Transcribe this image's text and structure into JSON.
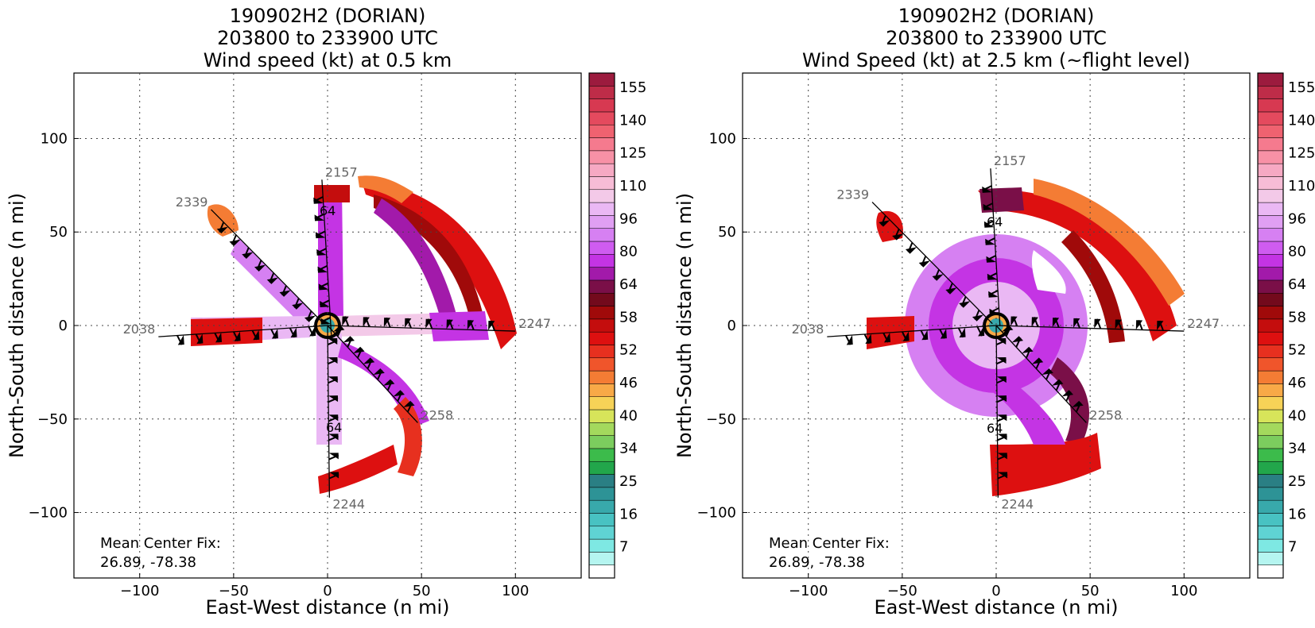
{
  "colorbar": {
    "colors": [
      "#ffffff",
      "#b5f5f0",
      "#7ee8e3",
      "#5fd3d3",
      "#48c2c2",
      "#38a9ab",
      "#2d9396",
      "#2a7f84",
      "#22a64b",
      "#3cbb4b",
      "#7ccd5e",
      "#a4d95d",
      "#d7e45a",
      "#f6d257",
      "#f8a947",
      "#f47c34",
      "#f0552b",
      "#e7301f",
      "#dd1010",
      "#c40d0d",
      "#a00a0a",
      "#730a1c",
      "#7a0f48",
      "#a21aaa",
      "#c434e4",
      "#cf5cf0",
      "#d680f2",
      "#e09ff3",
      "#eab8f4",
      "#f3c9e8",
      "#f7bcd6",
      "#f6a9c3",
      "#f791a6",
      "#f57a8e",
      "#ef6270",
      "#e44a5e",
      "#d73951",
      "#be2c48",
      "#9c1b3e"
    ],
    "tick_labels": [
      "155",
      "140",
      "125",
      "110",
      "96",
      "80",
      "64",
      "58",
      "52",
      "46",
      "40",
      "34",
      "25",
      "16",
      "7"
    ]
  },
  "chart_data": [
    {
      "type": "heatmap",
      "title_lines": [
        "190902H2 (DORIAN)",
        "203800 to 233900 UTC",
        "Wind speed (kt) at 0.5 km"
      ],
      "xlabel": "East-West distance (n mi)",
      "ylabel": "North-South distance (n mi)",
      "xlim": [
        -135,
        135
      ],
      "ylim": [
        -135,
        135
      ],
      "xticks": [
        -100,
        -50,
        0,
        50,
        100
      ],
      "yticks": [
        -100,
        -50,
        0,
        50,
        100
      ],
      "grid": true,
      "annotation_lines": [
        "Mean Center Fix:",
        "26.89, -78.38"
      ],
      "legend_placement": "lower-left",
      "colorbar_label_values": [
        155,
        140,
        125,
        110,
        96,
        80,
        64,
        58,
        52,
        46,
        40,
        34,
        25,
        16,
        7
      ],
      "flight_legs": [
        {
          "label": "2157",
          "from": [
            -3,
            78
          ],
          "to": [
            2,
            -5
          ]
        },
        {
          "label": "2339",
          "from": [
            -62,
            62
          ],
          "to": [
            -2,
            1
          ]
        },
        {
          "label": "2038",
          "from": [
            -90,
            -6
          ],
          "to": [
            0,
            0
          ]
        },
        {
          "label": "2247",
          "from": [
            100,
            -3
          ],
          "to": [
            0,
            0
          ]
        },
        {
          "label": "2258",
          "from": [
            48,
            -52
          ],
          "to": [
            0,
            0
          ]
        },
        {
          "label": "2244",
          "from": [
            1,
            -92
          ],
          "to": [
            0,
            0
          ]
        }
      ],
      "contour_labels": [
        "64",
        "64"
      ],
      "mean_center": [
        0,
        0
      ]
    },
    {
      "type": "heatmap",
      "title_lines": [
        "190902H2 (DORIAN)",
        "203800 to 233900 UTC",
        "Wind Speed (kt) at 2.5 km (~flight level)"
      ],
      "xlabel": "East-West distance (n mi)",
      "ylabel": "North-South distance (n mi)",
      "xlim": [
        -135,
        135
      ],
      "ylim": [
        -135,
        135
      ],
      "xticks": [
        -100,
        -50,
        0,
        50,
        100
      ],
      "yticks": [
        -100,
        -50,
        0,
        50,
        100
      ],
      "grid": true,
      "annotation_lines": [
        "Mean Center Fix:",
        "26.89, -78.38"
      ],
      "legend_placement": "lower-left",
      "colorbar_label_values": [
        155,
        140,
        125,
        110,
        96,
        80,
        64,
        58,
        52,
        46,
        40,
        34,
        25,
        16,
        7
      ],
      "flight_legs": [
        {
          "label": "2157",
          "from": [
            -3,
            84
          ],
          "to": [
            2,
            0
          ]
        },
        {
          "label": "2339",
          "from": [
            -66,
            66
          ],
          "to": [
            -2,
            1
          ]
        },
        {
          "label": "2038",
          "from": [
            -90,
            -6
          ],
          "to": [
            0,
            0
          ]
        },
        {
          "label": "2247",
          "from": [
            100,
            -3
          ],
          "to": [
            0,
            0
          ]
        },
        {
          "label": "2258",
          "from": [
            48,
            -52
          ],
          "to": [
            0,
            0
          ]
        },
        {
          "label": "2244",
          "from": [
            1,
            -92
          ],
          "to": [
            0,
            0
          ]
        }
      ],
      "contour_labels": [
        "64",
        "64"
      ],
      "mean_center": [
        0,
        0
      ]
    }
  ]
}
